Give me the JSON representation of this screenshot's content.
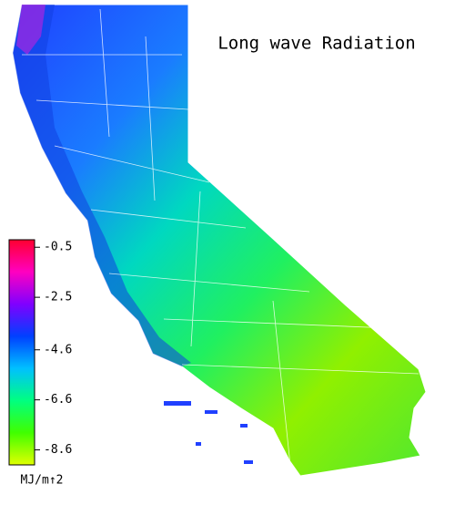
{
  "map": {
    "title": "Long wave Radiation",
    "colorbar": {
      "range": [
        -0.2,
        -9.2
      ],
      "ticks": [
        -0.5,
        -2.5,
        -4.6,
        -6.6,
        -8.6
      ],
      "unit": "MJ/m↑2",
      "colors": [
        "#ff0030",
        "#ff00c0",
        "#8000ff",
        "#0040ff",
        "#00c0ff",
        "#00ff80",
        "#40ff00",
        "#e0ff00"
      ]
    }
  }
}
